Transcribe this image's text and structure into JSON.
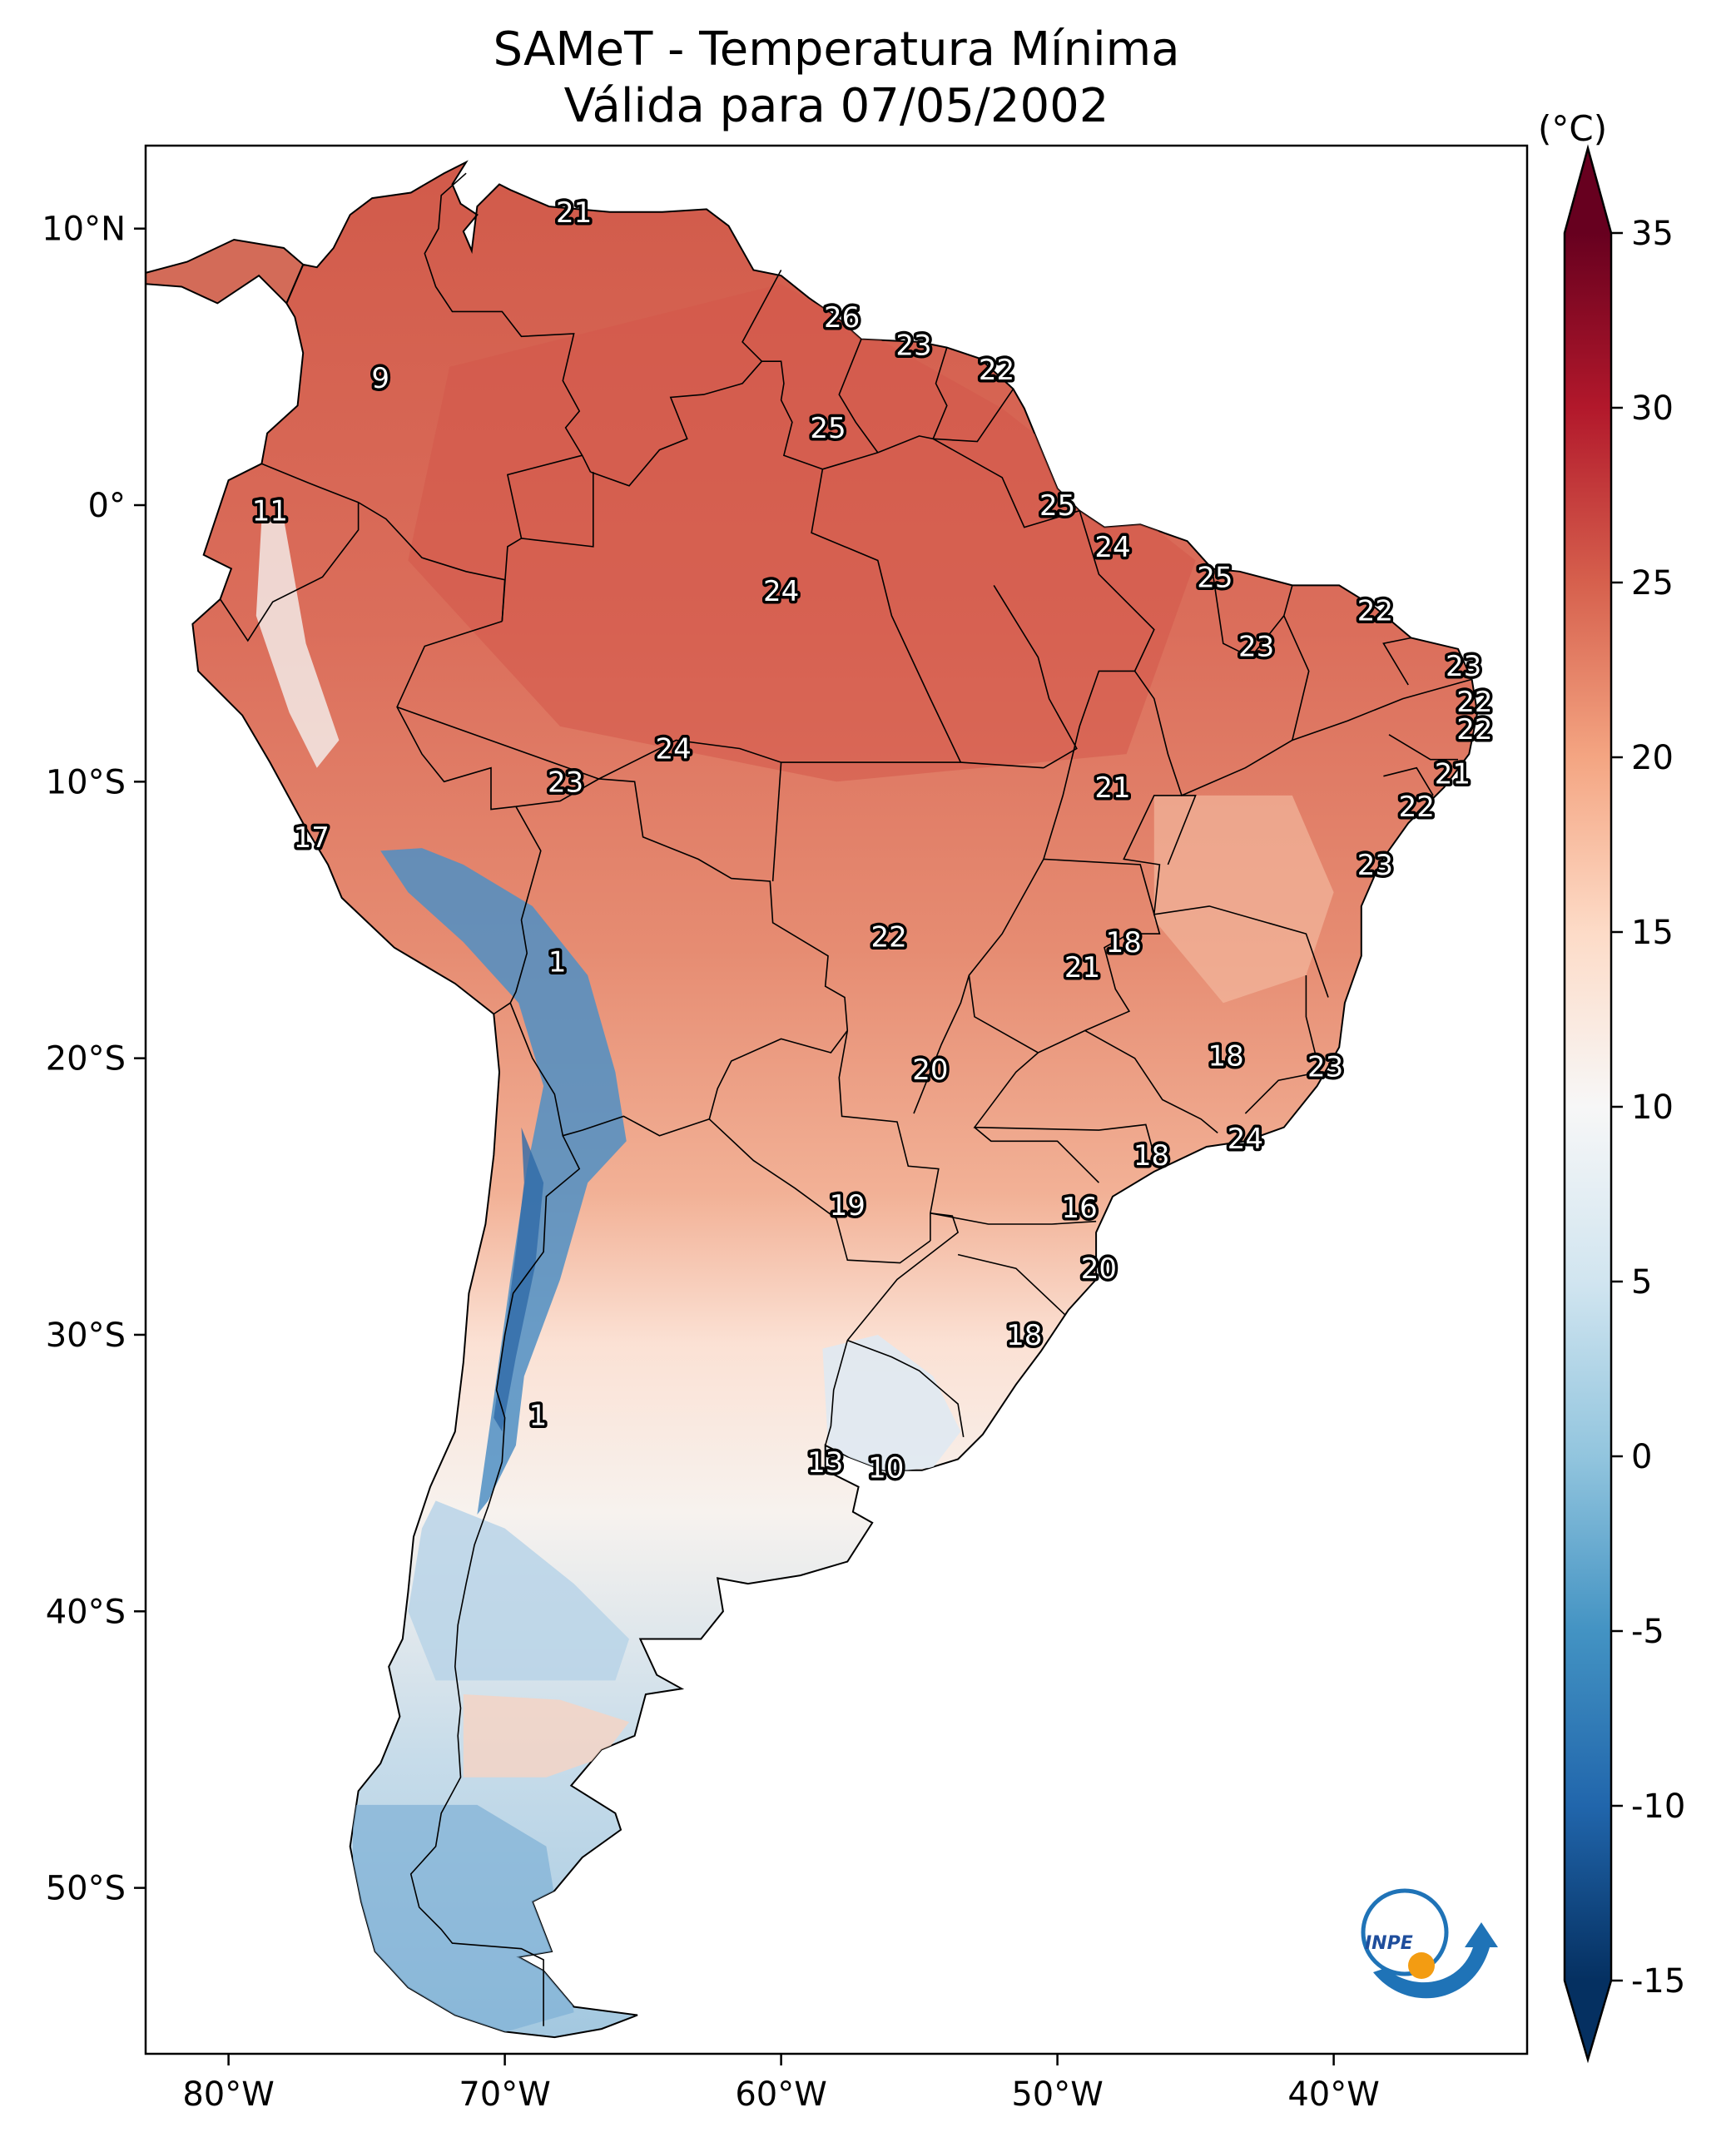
{
  "title_line1": "SAMeT - Temperatura Mínima",
  "title_line2": "Válida para 07/05/2002",
  "unit": "(°C)",
  "colorbar": {
    "min": -15,
    "max": 35,
    "ticks": [
      35,
      30,
      25,
      20,
      15,
      10,
      5,
      0,
      -5,
      -10,
      -15
    ],
    "tick_labels": [
      "35",
      "30",
      "25",
      "20",
      "15",
      "10",
      "5",
      "0",
      "-5",
      "-10",
      "-15"
    ],
    "extend": "both",
    "colormap": "RdBu_r",
    "stops": [
      "#053061",
      "#2166ac",
      "#4393c3",
      "#92c5de",
      "#d1e5f0",
      "#f7f7f7",
      "#fddbc7",
      "#f4a582",
      "#d6604d",
      "#b2182b",
      "#67001f"
    ]
  },
  "map": {
    "lon_range": [
      -83,
      -33
    ],
    "lat_range": [
      -56,
      13
    ],
    "lon_ticks": [
      -80,
      -70,
      -60,
      -50,
      -40
    ],
    "lon_tick_labels": [
      "80°W",
      "70°W",
      "60°W",
      "50°W",
      "40°W"
    ],
    "lat_ticks": [
      10,
      0,
      -10,
      -20,
      -30,
      -40,
      -50
    ],
    "lat_tick_labels": [
      "10°N",
      "0°",
      "10°S",
      "20°S",
      "30°S",
      "40°S",
      "50°S"
    ]
  },
  "logo_text": "INPE",
  "station_values": [
    {
      "lon": -67.5,
      "lat": 10.6,
      "value": "21"
    },
    {
      "lon": -74.5,
      "lat": 4.6,
      "value": "9"
    },
    {
      "lon": -57.8,
      "lat": 6.8,
      "value": "26"
    },
    {
      "lon": -55.2,
      "lat": 5.8,
      "value": "23"
    },
    {
      "lon": -52.2,
      "lat": 4.9,
      "value": "22"
    },
    {
      "lon": -58.3,
      "lat": 2.8,
      "value": "25"
    },
    {
      "lon": -78.5,
      "lat": -0.2,
      "value": "11"
    },
    {
      "lon": -50.0,
      "lat": 0.0,
      "value": "25"
    },
    {
      "lon": -48.0,
      "lat": -1.5,
      "value": "24"
    },
    {
      "lon": -60.0,
      "lat": -3.1,
      "value": "24"
    },
    {
      "lon": -44.3,
      "lat": -2.6,
      "value": "25"
    },
    {
      "lon": -38.5,
      "lat": -3.8,
      "value": "22"
    },
    {
      "lon": -42.8,
      "lat": -5.1,
      "value": "23"
    },
    {
      "lon": -35.3,
      "lat": -5.8,
      "value": "23"
    },
    {
      "lon": -34.9,
      "lat": -7.1,
      "value": "22"
    },
    {
      "lon": -34.9,
      "lat": -8.1,
      "value": "22"
    },
    {
      "lon": -35.7,
      "lat": -9.7,
      "value": "21"
    },
    {
      "lon": -37.0,
      "lat": -10.9,
      "value": "22"
    },
    {
      "lon": -38.5,
      "lat": -13.0,
      "value": "23"
    },
    {
      "lon": -63.9,
      "lat": -8.8,
      "value": "24"
    },
    {
      "lon": -67.8,
      "lat": -10.0,
      "value": "23"
    },
    {
      "lon": -48.0,
      "lat": -10.2,
      "value": "21"
    },
    {
      "lon": -77.0,
      "lat": -12.0,
      "value": "17"
    },
    {
      "lon": -56.1,
      "lat": -15.6,
      "value": "22"
    },
    {
      "lon": -47.6,
      "lat": -15.8,
      "value": "18"
    },
    {
      "lon": -49.1,
      "lat": -16.7,
      "value": "21"
    },
    {
      "lon": -68.1,
      "lat": -16.5,
      "value": "1"
    },
    {
      "lon": -43.9,
      "lat": -19.9,
      "value": "18"
    },
    {
      "lon": -40.3,
      "lat": -20.3,
      "value": "23"
    },
    {
      "lon": -54.6,
      "lat": -20.4,
      "value": "20"
    },
    {
      "lon": -43.2,
      "lat": -22.9,
      "value": "24"
    },
    {
      "lon": -46.6,
      "lat": -23.5,
      "value": "18"
    },
    {
      "lon": -49.2,
      "lat": -25.4,
      "value": "16"
    },
    {
      "lon": -57.6,
      "lat": -25.3,
      "value": "19"
    },
    {
      "lon": -48.5,
      "lat": -27.6,
      "value": "20"
    },
    {
      "lon": -51.2,
      "lat": -30.0,
      "value": "18"
    },
    {
      "lon": -68.8,
      "lat": -32.9,
      "value": "1"
    },
    {
      "lon": -58.4,
      "lat": -34.6,
      "value": "13"
    },
    {
      "lon": -56.2,
      "lat": -34.8,
      "value": "10"
    }
  ]
}
